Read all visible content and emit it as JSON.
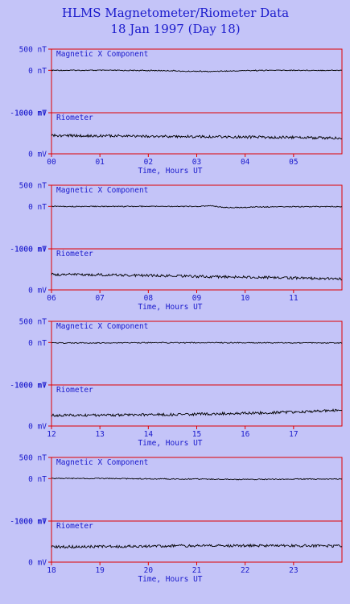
{
  "title": "HLMS Magnetometer/Riometer Data",
  "subtitle": "18 Jan 1997 (Day 18)",
  "colors": {
    "background": "#c4c4f8",
    "frame": "#e00000",
    "text": "#1a1acc",
    "trace": "#000000"
  },
  "chart_data": [
    {
      "type": "line",
      "title": "",
      "xlabel": "Time, Hours UT",
      "x_range": [
        0,
        6
      ],
      "x_ticks": [
        "00",
        "01",
        "02",
        "03",
        "04",
        "05"
      ],
      "panels": [
        {
          "name": "Magnetic X Component",
          "unit": "nT",
          "ylim": [
            -1000,
            500
          ],
          "y_ticks": [
            {
              "value": 500,
              "label": "500 nT"
            },
            {
              "value": 0,
              "label": "0 nT"
            },
            {
              "value": -1000,
              "label": "-1000 nT"
            }
          ],
          "series": [
            {
              "x": [
                0,
                1,
                2,
                2.6,
                2.7,
                3.0,
                3.3,
                3.4,
                3.8,
                4.0,
                4.5,
                5,
                6
              ],
              "y": [
                0,
                0,
                -5,
                -10,
                -25,
                -20,
                -30,
                -20,
                -15,
                -5,
                0,
                0,
                0
              ]
            }
          ]
        },
        {
          "name": "Riometer",
          "unit": "mV",
          "ylim": [
            0,
            1000
          ],
          "y_ticks": [
            {
              "value": 1000,
              "label": "1000 mV"
            },
            {
              "value": 0,
              "label": "0 mV"
            }
          ],
          "series": [
            {
              "x": [
                0,
                0.5,
                1,
                1.5,
                2,
                2.5,
                3,
                3.5,
                4,
                4.5,
                5,
                5.5,
                6
              ],
              "y": [
                450,
                440,
                440,
                435,
                430,
                425,
                420,
                415,
                410,
                405,
                400,
                390,
                380
              ]
            }
          ]
        }
      ]
    },
    {
      "type": "line",
      "title": "",
      "xlabel": "Time, Hours UT",
      "x_range": [
        6,
        12
      ],
      "x_ticks": [
        "06",
        "07",
        "08",
        "09",
        "10",
        "11"
      ],
      "panels": [
        {
          "name": "Magnetic X Component",
          "unit": "nT",
          "ylim": [
            -1000,
            500
          ],
          "y_ticks": [
            {
              "value": 500,
              "label": "500 nT"
            },
            {
              "value": 0,
              "label": "0 nT"
            },
            {
              "value": -1000,
              "label": "-1000 nT"
            }
          ],
          "series": [
            {
              "x": [
                6,
                7,
                8,
                9,
                9.3,
                9.6,
                10,
                10.2,
                10.5,
                11,
                11.5,
                12
              ],
              "y": [
                0,
                0,
                0,
                0,
                15,
                -25,
                -25,
                -10,
                -10,
                -5,
                -5,
                -5
              ]
            }
          ]
        },
        {
          "name": "Riometer",
          "unit": "mV",
          "ylim": [
            0,
            1000
          ],
          "y_ticks": [
            {
              "value": 1000,
              "label": "1000 mV"
            },
            {
              "value": 0,
              "label": "0 mV"
            }
          ],
          "series": [
            {
              "x": [
                6,
                6.5,
                7,
                7.5,
                8,
                8.5,
                9,
                9.5,
                10,
                10.5,
                11,
                11.5,
                12
              ],
              "y": [
                380,
                380,
                370,
                360,
                350,
                340,
                330,
                320,
                310,
                300,
                290,
                280,
                270
              ]
            }
          ]
        }
      ]
    },
    {
      "type": "line",
      "title": "",
      "xlabel": "Time, Hours UT",
      "x_range": [
        12,
        18
      ],
      "x_ticks": [
        "12",
        "13",
        "14",
        "15",
        "16",
        "17"
      ],
      "panels": [
        {
          "name": "Magnetic X Component",
          "unit": "nT",
          "ylim": [
            -1000,
            500
          ],
          "y_ticks": [
            {
              "value": 500,
              "label": "500 nT"
            },
            {
              "value": 0,
              "label": "0 nT"
            },
            {
              "value": -1000,
              "label": "-1000 nT"
            }
          ],
          "series": [
            {
              "x": [
                12,
                13,
                14,
                15,
                16,
                17,
                18
              ],
              "y": [
                -10,
                -10,
                -5,
                -5,
                -5,
                -10,
                -10
              ]
            }
          ]
        },
        {
          "name": "Riometer",
          "unit": "mV",
          "ylim": [
            0,
            1000
          ],
          "y_ticks": [
            {
              "value": 1000,
              "label": "1000 mV"
            },
            {
              "value": 0,
              "label": "0 mV"
            }
          ],
          "series": [
            {
              "x": [
                12,
                12.5,
                13,
                13.5,
                14,
                14.5,
                15,
                15.5,
                16,
                16.5,
                17,
                17.5,
                18
              ],
              "y": [
                260,
                260,
                265,
                270,
                275,
                280,
                290,
                300,
                310,
                325,
                340,
                360,
                390
              ]
            }
          ]
        }
      ]
    },
    {
      "type": "line",
      "title": "",
      "xlabel": "Time, Hours UT",
      "x_range": [
        18,
        24
      ],
      "x_ticks": [
        "18",
        "19",
        "20",
        "21",
        "22",
        "23"
      ],
      "panels": [
        {
          "name": "Magnetic X Component",
          "unit": "nT",
          "ylim": [
            -1000,
            500
          ],
          "y_ticks": [
            {
              "value": 500,
              "label": "500 nT"
            },
            {
              "value": 0,
              "label": "0 nT"
            },
            {
              "value": -1000,
              "label": "-1000 nT"
            }
          ],
          "series": [
            {
              "x": [
                18,
                19,
                20,
                21,
                21.5,
                22,
                23,
                24
              ],
              "y": [
                5,
                5,
                -5,
                -10,
                -15,
                -20,
                -10,
                -10
              ]
            }
          ]
        },
        {
          "name": "Riometer",
          "unit": "mV",
          "ylim": [
            0,
            1000
          ],
          "y_ticks": [
            {
              "value": 1000,
              "label": "1000 mV"
            },
            {
              "value": 0,
              "label": "0 mV"
            }
          ],
          "series": [
            {
              "x": [
                18,
                18.5,
                19,
                19.5,
                20,
                20.5,
                21,
                21.5,
                22,
                22.5,
                23,
                23.5,
                24
              ],
              "y": [
                370,
                375,
                380,
                385,
                390,
                395,
                400,
                400,
                400,
                400,
                400,
                395,
                390
              ]
            }
          ]
        }
      ]
    }
  ]
}
